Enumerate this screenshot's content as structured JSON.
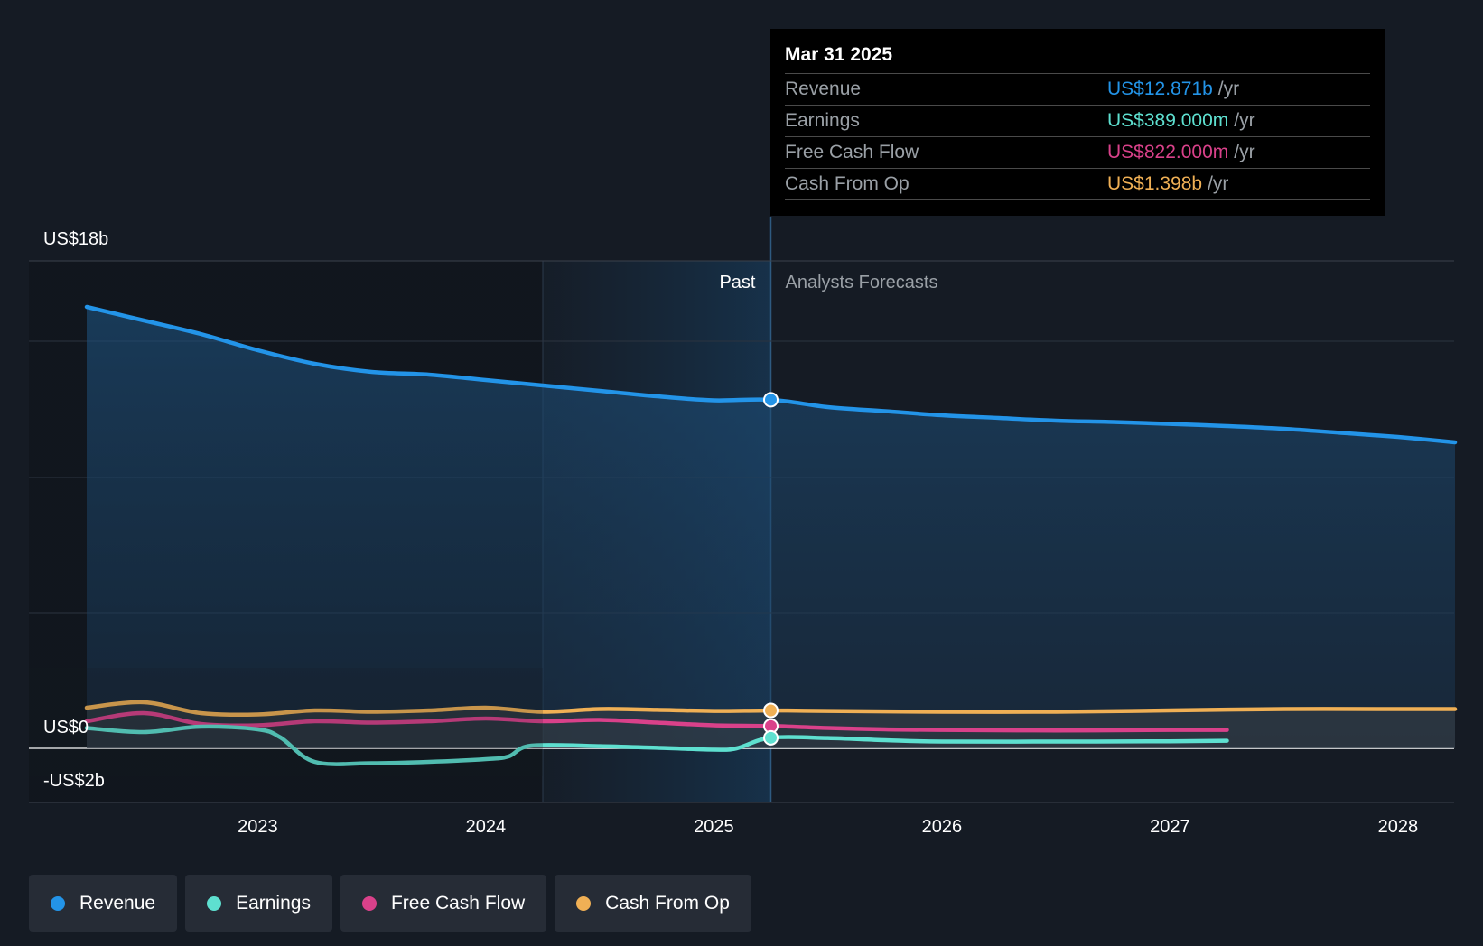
{
  "chart_data": {
    "type": "area",
    "y_axis": {
      "top_label": "US$18b",
      "zero_label": "US$0",
      "bottom_label": "-US$2b",
      "ylim": [
        -2,
        16.3
      ],
      "gridlines": [
        16.3,
        13.3,
        8.3,
        3.3
      ]
    },
    "x_axis": {
      "ticks": [
        "2023",
        "2024",
        "2025",
        "2026",
        "2027",
        "2028"
      ],
      "tick_values": [
        2023,
        2024,
        2025,
        2026,
        2027,
        2028
      ],
      "xlim": [
        2022.0,
        2028.25
      ]
    },
    "regions": {
      "past_label": "Past",
      "forecast_label": "Analysts Forecasts",
      "divider_x": 2025.25,
      "highlight_start": 2024.25
    },
    "series": [
      {
        "name": "Revenue",
        "color": "#2394e8",
        "points": [
          [
            2022.25,
            16.3
          ],
          [
            2022.5,
            15.8
          ],
          [
            2022.75,
            15.3
          ],
          [
            2023.0,
            14.7
          ],
          [
            2023.25,
            14.2
          ],
          [
            2023.5,
            13.9
          ],
          [
            2023.75,
            13.8
          ],
          [
            2024.0,
            13.6
          ],
          [
            2024.25,
            13.4
          ],
          [
            2024.5,
            13.2
          ],
          [
            2024.75,
            13.0
          ],
          [
            2025.0,
            12.85
          ],
          [
            2025.25,
            12.871
          ],
          [
            2025.5,
            12.6
          ],
          [
            2025.75,
            12.45
          ],
          [
            2026.0,
            12.3
          ],
          [
            2026.25,
            12.2
          ],
          [
            2026.5,
            12.1
          ],
          [
            2026.75,
            12.05
          ],
          [
            2027.0,
            11.98
          ],
          [
            2027.25,
            11.9
          ],
          [
            2027.5,
            11.8
          ],
          [
            2027.75,
            11.65
          ],
          [
            2028.0,
            11.5
          ],
          [
            2028.25,
            11.3
          ]
        ]
      },
      {
        "name": "Earnings",
        "color": "#5ee0d0",
        "points": [
          [
            2022.25,
            0.75
          ],
          [
            2022.5,
            0.6
          ],
          [
            2022.75,
            0.8
          ],
          [
            2023.0,
            0.7
          ],
          [
            2023.1,
            0.4
          ],
          [
            2023.25,
            -0.5
          ],
          [
            2023.5,
            -0.55
          ],
          [
            2023.75,
            -0.5
          ],
          [
            2024.0,
            -0.4
          ],
          [
            2024.1,
            -0.3
          ],
          [
            2024.2,
            0.1
          ],
          [
            2024.5,
            0.08
          ],
          [
            2024.75,
            0.02
          ],
          [
            2025.0,
            -0.05
          ],
          [
            2025.1,
            0.0
          ],
          [
            2025.25,
            0.389
          ],
          [
            2025.5,
            0.38
          ],
          [
            2025.75,
            0.3
          ],
          [
            2026.0,
            0.25
          ],
          [
            2026.5,
            0.25
          ],
          [
            2027.0,
            0.26
          ],
          [
            2027.25,
            0.28
          ]
        ]
      },
      {
        "name": "Free Cash Flow",
        "color": "#d9418a",
        "points": [
          [
            2022.25,
            1.0
          ],
          [
            2022.5,
            1.3
          ],
          [
            2022.75,
            0.9
          ],
          [
            2023.0,
            0.85
          ],
          [
            2023.25,
            1.0
          ],
          [
            2023.5,
            0.95
          ],
          [
            2023.75,
            1.0
          ],
          [
            2024.0,
            1.1
          ],
          [
            2024.25,
            1.0
          ],
          [
            2024.5,
            1.05
          ],
          [
            2024.75,
            0.95
          ],
          [
            2025.0,
            0.85
          ],
          [
            2025.25,
            0.822
          ],
          [
            2025.5,
            0.75
          ],
          [
            2025.75,
            0.7
          ],
          [
            2026.0,
            0.68
          ],
          [
            2026.5,
            0.66
          ],
          [
            2027.0,
            0.68
          ],
          [
            2027.25,
            0.68
          ]
        ]
      },
      {
        "name": "Cash From Op",
        "color": "#f0b055",
        "points": [
          [
            2022.25,
            1.5
          ],
          [
            2022.5,
            1.7
          ],
          [
            2022.75,
            1.3
          ],
          [
            2023.0,
            1.25
          ],
          [
            2023.25,
            1.4
          ],
          [
            2023.5,
            1.35
          ],
          [
            2023.75,
            1.4
          ],
          [
            2024.0,
            1.5
          ],
          [
            2024.25,
            1.35
          ],
          [
            2024.5,
            1.45
          ],
          [
            2024.75,
            1.42
          ],
          [
            2025.0,
            1.38
          ],
          [
            2025.25,
            1.398
          ],
          [
            2025.5,
            1.38
          ],
          [
            2026.0,
            1.35
          ],
          [
            2026.5,
            1.35
          ],
          [
            2027.0,
            1.4
          ],
          [
            2027.5,
            1.45
          ],
          [
            2028.0,
            1.45
          ],
          [
            2028.25,
            1.45
          ]
        ]
      }
    ]
  },
  "tooltip": {
    "date": "Mar 31 2025",
    "rows": [
      {
        "name": "Revenue",
        "value": "US$12.871b",
        "unit": "/yr",
        "color": "#2394e8"
      },
      {
        "name": "Earnings",
        "value": "US$389.000m",
        "unit": "/yr",
        "color": "#5ee0d0"
      },
      {
        "name": "Free Cash Flow",
        "value": "US$822.000m",
        "unit": "/yr",
        "color": "#d9418a"
      },
      {
        "name": "Cash From Op",
        "value": "US$1.398b",
        "unit": "/yr",
        "color": "#f0b055"
      }
    ]
  },
  "legend": [
    {
      "label": "Revenue",
      "color": "#2394e8"
    },
    {
      "label": "Earnings",
      "color": "#5ee0d0"
    },
    {
      "label": "Free Cash Flow",
      "color": "#d9418a"
    },
    {
      "label": "Cash From Op",
      "color": "#f0b055"
    }
  ]
}
